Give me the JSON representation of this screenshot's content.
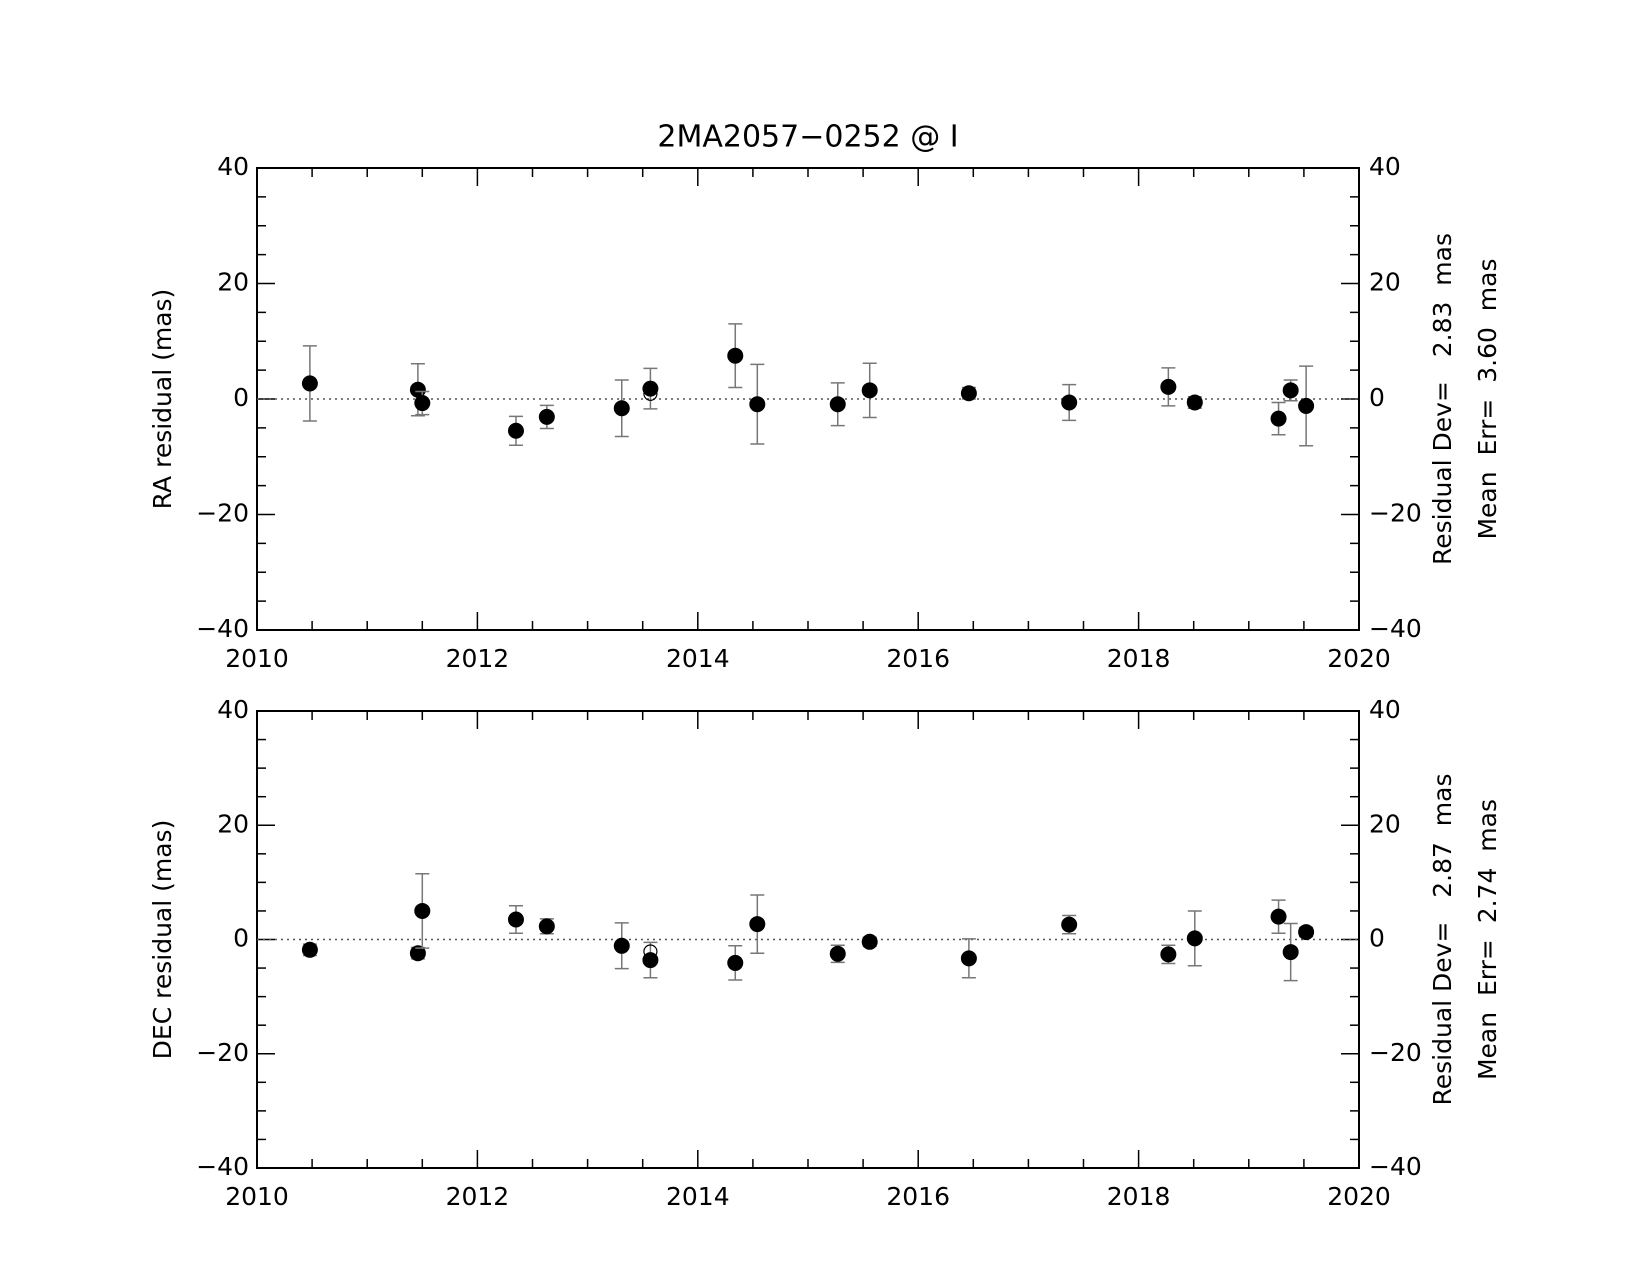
{
  "chart_data": [
    {
      "type": "scatter",
      "title": "2MA2057−0252 @ I",
      "ylabel": "RA residual (mas)",
      "annotations": [
        "Residual Dev=   2.83  mas",
        "Mean  Err=  3.60  mas"
      ],
      "xlim": [
        2010,
        2020
      ],
      "xticks": [
        2010,
        2012,
        2014,
        2016,
        2018,
        2020
      ],
      "xminorticks": [
        2010.5,
        2011,
        2011.5,
        2012.5,
        2013,
        2013.5,
        2014.5,
        2015,
        2015.5,
        2016.5,
        2017,
        2017.5,
        2018.5,
        2019,
        2019.5
      ],
      "ylim": [
        -40,
        40
      ],
      "yticks": [
        {
          "value": -40,
          "label": "−40"
        },
        {
          "value": -20,
          "label": "−20"
        },
        0,
        20,
        40
      ],
      "yminorticks": [
        -35,
        -30,
        -25,
        -15,
        -10,
        -5,
        5,
        10,
        15,
        25,
        30,
        35
      ],
      "zero_line": 0,
      "series": [
        {
          "marker": "filled",
          "color": "#000000",
          "x": [
            2010.48,
            2011.46,
            2011.5,
            2012.35,
            2012.63,
            2013.31,
            2013.57,
            2014.34,
            2014.54,
            2015.27,
            2015.56,
            2016.46,
            2017.37,
            2018.27,
            2018.51,
            2019.27,
            2019.38,
            2019.52
          ],
          "values": [
            2.7,
            1.6,
            -0.7,
            -5.5,
            -3.1,
            -1.6,
            1.8,
            7.5,
            -0.9,
            -0.9,
            1.5,
            1.0,
            -0.6,
            2.1,
            -0.6,
            -3.4,
            1.5,
            -1.2
          ],
          "errors": [
            6.5,
            4.5,
            2.0,
            2.5,
            2.0,
            4.9,
            3.5,
            5.5,
            6.9,
            3.7,
            4.7,
            1.0,
            3.1,
            3.3,
            1.0,
            2.8,
            1.8,
            6.9
          ]
        },
        {
          "marker": "open",
          "color": "#000000",
          "x": [
            2013.57
          ],
          "values": [
            0.9
          ]
        }
      ]
    },
    {
      "type": "scatter",
      "ylabel": "DEC residual (mas)",
      "annotations": [
        "Residual Dev=   2.87  mas",
        "Mean  Err=  2.74  mas"
      ],
      "xlim": [
        2010,
        2020
      ],
      "xticks": [
        2010,
        2012,
        2014,
        2016,
        2018,
        2020
      ],
      "xminorticks": [
        2010.5,
        2011,
        2011.5,
        2012.5,
        2013,
        2013.5,
        2014.5,
        2015,
        2015.5,
        2016.5,
        2017,
        2017.5,
        2018.5,
        2019,
        2019.5
      ],
      "ylim": [
        -40,
        40
      ],
      "yticks": [
        {
          "value": -40,
          "label": "−40"
        },
        {
          "value": -20,
          "label": "−20"
        },
        0,
        20,
        40
      ],
      "yminorticks": [
        -35,
        -30,
        -25,
        -15,
        -10,
        -5,
        5,
        10,
        15,
        25,
        30,
        35
      ],
      "zero_line": 0,
      "series": [
        {
          "marker": "filled",
          "color": "#000000",
          "x": [
            2010.48,
            2011.46,
            2011.5,
            2012.35,
            2012.63,
            2013.31,
            2013.57,
            2014.34,
            2014.54,
            2015.27,
            2015.56,
            2016.46,
            2017.37,
            2018.27,
            2018.51,
            2019.27,
            2019.38,
            2019.52
          ],
          "values": [
            -1.8,
            -2.4,
            5.0,
            3.5,
            2.3,
            -1.1,
            -3.6,
            -4.1,
            2.7,
            -2.5,
            -0.4,
            -3.3,
            2.6,
            -2.6,
            0.2,
            4.0,
            -2.2,
            1.3
          ],
          "errors": [
            1.0,
            1.0,
            6.5,
            2.4,
            1.3,
            4.0,
            3.1,
            3.0,
            5.1,
            1.5,
            0.8,
            3.4,
            1.6,
            1.6,
            4.8,
            2.9,
            5.0,
            0.8
          ]
        },
        {
          "marker": "open",
          "color": "#000000",
          "x": [
            2013.57
          ],
          "values": [
            -2.1
          ]
        }
      ]
    }
  ]
}
